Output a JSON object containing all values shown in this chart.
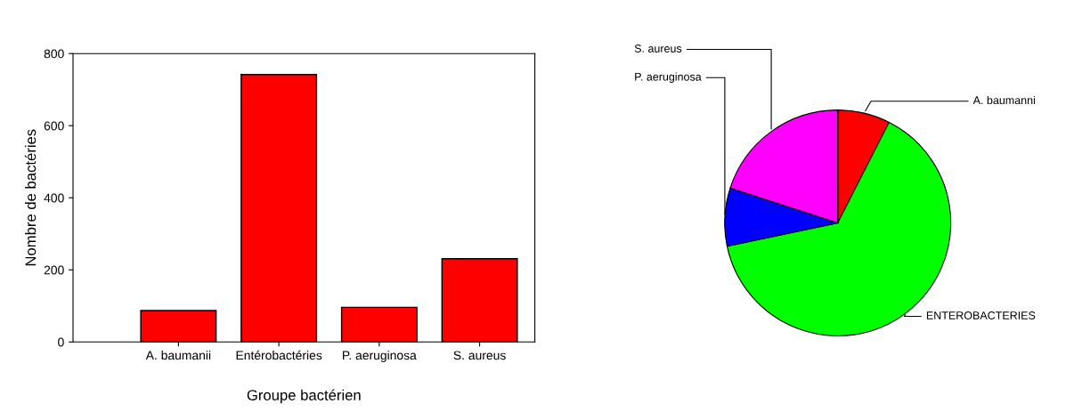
{
  "chart_data": [
    {
      "type": "bar",
      "xlabel": "Groupe bactérien",
      "ylabel": "Nombre de bactéries",
      "categories": [
        "A. baumanii",
        "Entérobactéries",
        "P. aeruginosa",
        "S. aureus"
      ],
      "values": [
        87,
        742,
        96,
        231
      ],
      "color": "#ff0000",
      "ylim": [
        0,
        800
      ],
      "yticks": [
        0,
        200,
        400,
        600,
        800
      ],
      "grid": false
    },
    {
      "type": "pie",
      "categories": [
        "A. baumanni",
        "ENTEROBACTERIES",
        "P. aeruginosa",
        "S. aureus"
      ],
      "values": [
        7.5,
        64.2,
        8.3,
        20.0
      ],
      "colors": [
        "#ff0000",
        "#00ff00",
        "#0000ff",
        "#ff00ff"
      ]
    }
  ]
}
